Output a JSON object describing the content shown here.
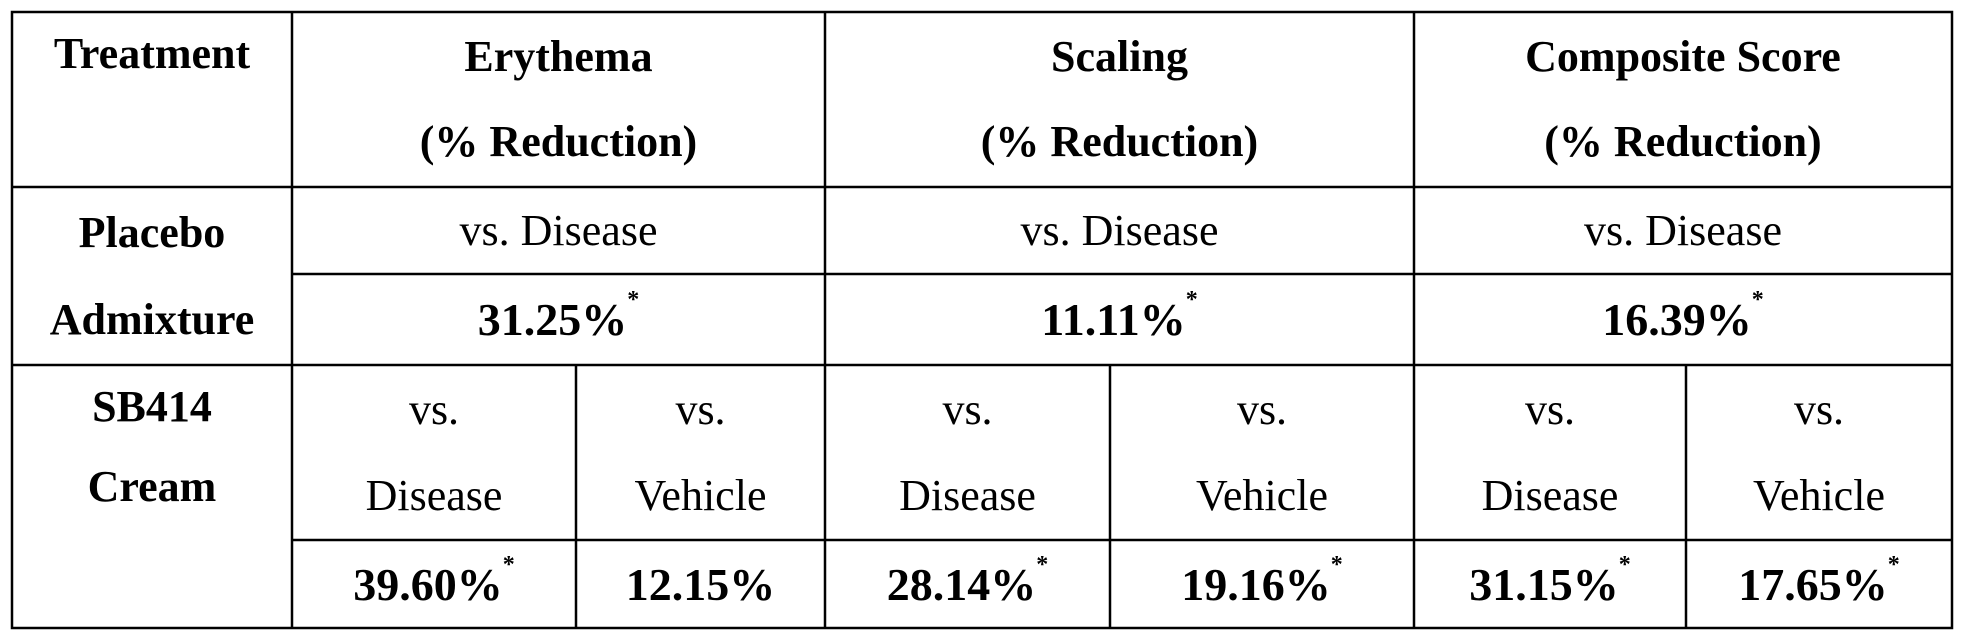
{
  "table": {
    "header": {
      "treatment": "Treatment",
      "erythema": "Erythema",
      "scaling": "Scaling",
      "composite": "Composite Score",
      "reduction": "(% Reduction)"
    },
    "placebo": {
      "label_line1": "Placebo",
      "label_line2": "Admixture",
      "comparison": "vs. Disease",
      "erythema": "31.25%",
      "scaling": "11.11%",
      "composite": "16.39%",
      "significance_mark": "*"
    },
    "sb414": {
      "label_line1": "SB414",
      "label_line2": "Cream",
      "vs": "vs.",
      "disease": "Disease",
      "vehicle": "Vehicle",
      "erythema_disease": "39.60%",
      "erythema_vehicle": "12.15%",
      "scaling_disease": "28.14%",
      "scaling_vehicle": "19.16%",
      "composite_disease": "31.15%",
      "composite_vehicle": "17.65%",
      "significance_mark": "*"
    }
  }
}
